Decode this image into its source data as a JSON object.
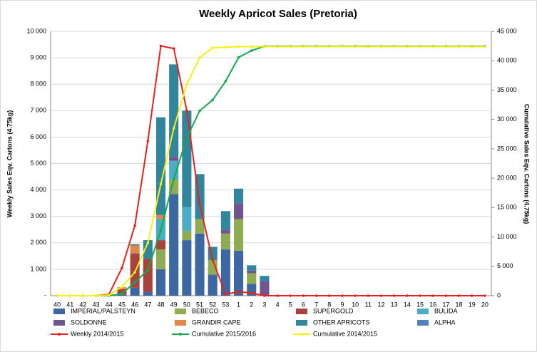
{
  "chart_data": {
    "type": "bar",
    "stacked": true,
    "title": "Weekly Apricot Sales (Pretoria)",
    "y_label": "Weekly Sales Eqv. Cartons (4.75kg)",
    "y2_label": "Cumulative Sales Eqv. Cartons (4.75kg)",
    "categories": [
      "40",
      "41",
      "42",
      "43",
      "44",
      "45",
      "46",
      "47",
      "48",
      "49",
      "50",
      "51",
      "52",
      "53",
      "1",
      "2",
      "3",
      "4",
      "5",
      "6",
      "7",
      "8",
      "9",
      "10",
      "11",
      "12",
      "13",
      "14",
      "15",
      "16",
      "17",
      "18",
      "19",
      "20"
    ],
    "ylim": [
      0,
      10000
    ],
    "yticks": [
      {
        "value": 0,
        "label": "-"
      },
      {
        "value": 1000,
        "label": "1 000"
      },
      {
        "value": 2000,
        "label": "2 000"
      },
      {
        "value": 3000,
        "label": "3 000"
      },
      {
        "value": 4000,
        "label": "4 000"
      },
      {
        "value": 5000,
        "label": "5 000"
      },
      {
        "value": 6000,
        "label": "6 000"
      },
      {
        "value": 7000,
        "label": "7 000"
      },
      {
        "value": 8000,
        "label": "8 000"
      },
      {
        "value": 9000,
        "label": "9 000"
      },
      {
        "value": 10000,
        "label": "10 000"
      }
    ],
    "y2lim": [
      0,
      45000
    ],
    "y2ticks": [
      0,
      {
        "value": 5000,
        "label": "5 000"
      },
      {
        "value": 10000,
        "label": "10 000"
      },
      {
        "value": 15000,
        "label": "15 000"
      },
      {
        "value": 20000,
        "label": "20 000"
      },
      {
        "value": 25000,
        "label": "25 000"
      },
      {
        "value": 30000,
        "label": "30 000"
      },
      {
        "value": 35000,
        "label": "35 000"
      },
      {
        "value": 40000,
        "label": "40 000"
      },
      {
        "value": 45000,
        "label": "45 000"
      }
    ],
    "grid": true,
    "series": [
      {
        "name": "IMPERIAL/PALSTEYN",
        "type": "bar",
        "color": "#3d67a0",
        "values": [
          0,
          0,
          0,
          0,
          0,
          50,
          300,
          150,
          1000,
          3850,
          2100,
          2350,
          800,
          1750,
          1700,
          450,
          0,
          0,
          0,
          0,
          0,
          0,
          0,
          0,
          0,
          0,
          0,
          0,
          0,
          0,
          0,
          0,
          0,
          0
        ]
      },
      {
        "name": "BEBECO",
        "type": "bar",
        "color": "#8fac55",
        "values": [
          0,
          0,
          0,
          0,
          0,
          0,
          0,
          0,
          750,
          550,
          350,
          550,
          550,
          600,
          1200,
          400,
          0,
          0,
          0,
          0,
          0,
          0,
          0,
          0,
          0,
          0,
          0,
          0,
          0,
          0,
          0,
          0,
          0,
          0
        ]
      },
      {
        "name": "SUPERGOLD",
        "type": "bar",
        "color": "#a8423f",
        "values": [
          0,
          0,
          0,
          0,
          0,
          200,
          1300,
          1250,
          350,
          0,
          0,
          0,
          0,
          0,
          0,
          0,
          0,
          0,
          0,
          0,
          0,
          0,
          0,
          0,
          0,
          0,
          0,
          0,
          0,
          0,
          0,
          0,
          0,
          0
        ]
      },
      {
        "name": "BULIDA",
        "type": "bar",
        "color": "#4bacc6",
        "values": [
          0,
          0,
          0,
          0,
          0,
          0,
          0,
          0,
          800,
          700,
          900,
          0,
          0,
          0,
          0,
          0,
          0,
          0,
          0,
          0,
          0,
          0,
          0,
          0,
          0,
          0,
          0,
          0,
          0,
          0,
          0,
          0,
          0,
          0
        ]
      },
      {
        "name": "SOLDONNE",
        "type": "bar",
        "color": "#71558f",
        "values": [
          0,
          0,
          0,
          0,
          0,
          0,
          0,
          0,
          0,
          150,
          0,
          0,
          0,
          150,
          600,
          100,
          550,
          0,
          0,
          0,
          0,
          0,
          0,
          0,
          0,
          0,
          0,
          0,
          0,
          0,
          0,
          0,
          0,
          0
        ]
      },
      {
        "name": "GRANDIR CAPE",
        "type": "bar",
        "color": "#e0884a",
        "values": [
          0,
          0,
          0,
          0,
          0,
          70,
          300,
          0,
          150,
          0,
          0,
          0,
          0,
          0,
          0,
          0,
          0,
          0,
          0,
          0,
          0,
          0,
          0,
          0,
          0,
          0,
          0,
          0,
          0,
          0,
          0,
          0,
          0,
          0
        ]
      },
      {
        "name": "OTHER APRICOTS",
        "type": "bar",
        "color": "#31859c",
        "values": [
          0,
          0,
          0,
          0,
          0,
          0,
          50,
          700,
          3700,
          3500,
          3650,
          1700,
          500,
          700,
          550,
          200,
          200,
          0,
          0,
          0,
          0,
          0,
          0,
          0,
          0,
          0,
          0,
          0,
          0,
          0,
          0,
          0,
          0,
          0
        ]
      },
      {
        "name": "ALPHA",
        "type": "bar",
        "color": "#4f81bd",
        "values": [
          0,
          0,
          0,
          0,
          0,
          0,
          0,
          0,
          0,
          0,
          0,
          0,
          0,
          0,
          0,
          0,
          0,
          0,
          0,
          0,
          0,
          0,
          0,
          0,
          0,
          0,
          0,
          0,
          0,
          0,
          0,
          0,
          0,
          0
        ]
      },
      {
        "name": "Weekly 2014/2015",
        "type": "line",
        "color": "#e8211d",
        "values": [
          0,
          0,
          0,
          0,
          50,
          1050,
          2650,
          5850,
          9450,
          9350,
          7000,
          3450,
          1350,
          50,
          150,
          100,
          0,
          0,
          0,
          0,
          0,
          0,
          0,
          0,
          0,
          0,
          0,
          0,
          0,
          0,
          0,
          0,
          0,
          0
        ]
      },
      {
        "name": "Cumulative 2015/2016",
        "type": "line",
        "axis": "y2",
        "color": "#14a84b",
        "values": [
          0,
          0,
          0,
          0,
          0,
          320,
          2270,
          4370,
          11120,
          19870,
          26870,
          31470,
          33320,
          36520,
          40570,
          41720,
          42470,
          42470,
          42470,
          42470,
          42470,
          42470,
          42470,
          42470,
          42470,
          42470,
          42470,
          42470,
          42470,
          42470,
          42470,
          42470,
          42470,
          42470
        ]
      },
      {
        "name": "Cumulative 2014/2015",
        "type": "line",
        "axis": "y2",
        "color": "#f5f20f",
        "values": [
          0,
          0,
          0,
          0,
          100,
          1500,
          4000,
          9000,
          19000,
          28500,
          36000,
          40500,
          42200,
          42300,
          42400,
          42400,
          42400,
          42400,
          42400,
          42400,
          42400,
          42400,
          42400,
          42400,
          42400,
          42400,
          42400,
          42400,
          42400,
          42400,
          42400,
          42400,
          42400,
          42400
        ]
      }
    ]
  }
}
